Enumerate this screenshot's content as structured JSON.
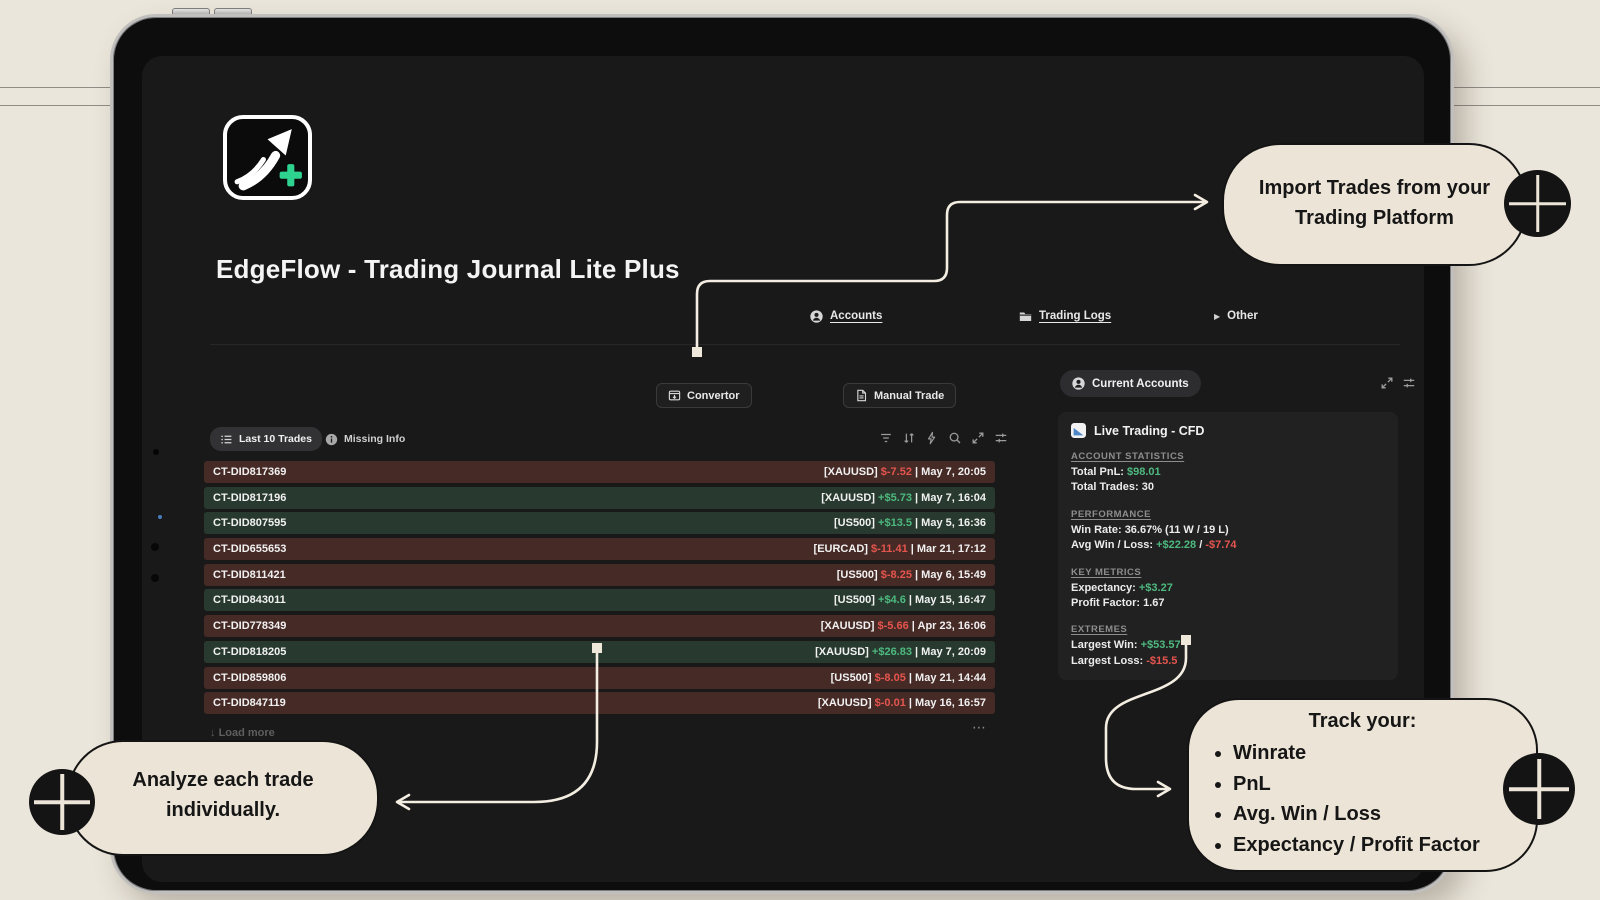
{
  "header": {
    "title": "EdgeFlow - Trading Journal Lite Plus"
  },
  "nav": {
    "accounts": "Accounts",
    "trading_logs": "Trading Logs",
    "other": "Other"
  },
  "toolbar": {
    "convertor": "Convertor",
    "manual_trade": "Manual Trade"
  },
  "icons": {
    "other_caret": "▶",
    "load_more_arrow": "↓",
    "more_dots": "⋯"
  },
  "trades": {
    "tab_last10": "Last 10 Trades",
    "tab_missing": "Missing Info",
    "load_more": "Load more",
    "rows": [
      {
        "id": "CT-DID817369",
        "symbol": "[XAUUSD]",
        "pnl": "$-7.52",
        "date": "May 7, 20:05",
        "result": "loss"
      },
      {
        "id": "CT-DID817196",
        "symbol": "[XAUUSD]",
        "pnl": "+$5.73",
        "date": "May 7, 16:04",
        "result": "win"
      },
      {
        "id": "CT-DID807595",
        "symbol": "[US500]",
        "pnl": "+$13.5",
        "date": "May 5, 16:36",
        "result": "win"
      },
      {
        "id": "CT-DID655653",
        "symbol": "[EURCAD]",
        "pnl": "$-11.41",
        "date": "Mar 21, 17:12",
        "result": "loss"
      },
      {
        "id": "CT-DID811421",
        "symbol": "[US500]",
        "pnl": "$-8.25",
        "date": "May 6, 15:49",
        "result": "loss"
      },
      {
        "id": "CT-DID843011",
        "symbol": "[US500]",
        "pnl": "+$4.6",
        "date": "May 15, 16:47",
        "result": "win"
      },
      {
        "id": "CT-DID778349",
        "symbol": "[XAUUSD]",
        "pnl": "$-5.66",
        "date": "Apr 23, 16:06",
        "result": "loss"
      },
      {
        "id": "CT-DID818205",
        "symbol": "[XAUUSD]",
        "pnl": "+$26.83",
        "date": "May 7, 20:09",
        "result": "win"
      },
      {
        "id": "CT-DID859806",
        "symbol": "[US500]",
        "pnl": "$-8.05",
        "date": "May 21, 14:44",
        "result": "loss"
      },
      {
        "id": "CT-DID847119",
        "symbol": "[XAUUSD]",
        "pnl": "$-0.01",
        "date": "May 16, 16:57",
        "result": "loss"
      }
    ]
  },
  "accounts_panel": {
    "header": "Current Accounts",
    "card_title": "Live Trading - CFD",
    "sections": [
      {
        "heading": "ACCOUNT STATISTICS",
        "lines": [
          [
            {
              "t": "Total PnL: "
            },
            {
              "t": "$98.01",
              "c": "win"
            }
          ],
          [
            {
              "t": "Total Trades: 30"
            }
          ]
        ]
      },
      {
        "heading": "PERFORMANCE",
        "lines": [
          [
            {
              "t": "Win Rate: "
            },
            {
              "t": "36.67%",
              "b": true
            },
            {
              "t": " (11 W / 19 L)"
            }
          ],
          [
            {
              "t": "Avg Win / Loss: "
            },
            {
              "t": "+$22.28",
              "c": "win"
            },
            {
              "t": " / "
            },
            {
              "t": "-$7.74",
              "c": "loss"
            }
          ]
        ]
      },
      {
        "heading": "KEY METRICS",
        "lines": [
          [
            {
              "t": "Expectancy: "
            },
            {
              "t": "+$3.27",
              "c": "win"
            }
          ],
          [
            {
              "t": "Profit Factor: 1.67"
            }
          ]
        ]
      },
      {
        "heading": "EXTREMES",
        "lines": [
          [
            {
              "t": "Largest Win: "
            },
            {
              "t": "+$53.57",
              "c": "win"
            }
          ],
          [
            {
              "t": "Largest Loss: "
            },
            {
              "t": "-$15.5",
              "c": "loss"
            }
          ]
        ]
      }
    ]
  },
  "callouts": {
    "import_trades": {
      "line1": "Import Trades from your",
      "line2": "Trading Platform"
    },
    "analyze": {
      "line1": "Analyze each trade",
      "line2": "individually."
    },
    "track": {
      "title": "Track your:",
      "bullets": [
        "Winrate",
        "PnL",
        "Avg. Win / Loss",
        "Expectancy / Profit Factor"
      ]
    }
  },
  "colors": {
    "win": "#4eb97f",
    "loss": "#e5554e",
    "row_win_bg": "#283a2f",
    "row_loss_bg": "#462a26",
    "callout_bg": "#ece4d6",
    "accent_plus": "#2fd390"
  }
}
